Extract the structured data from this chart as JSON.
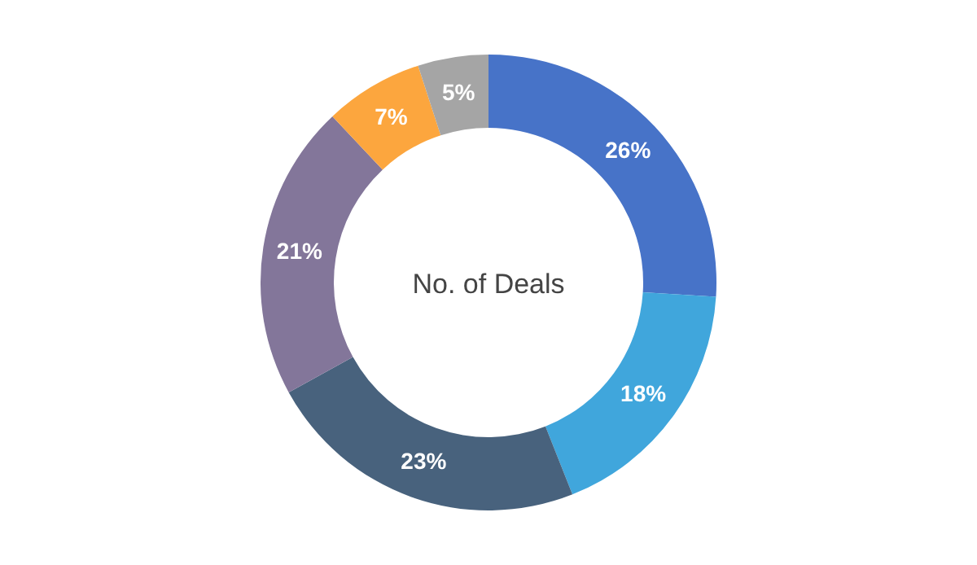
{
  "chart_data": {
    "type": "donut",
    "title": "No. of Deals",
    "categories": [
      null,
      null,
      null,
      null,
      null,
      null
    ],
    "values": [
      26,
      18,
      23,
      21,
      7,
      5
    ],
    "colors": [
      "#4773c8",
      "#40a6dc",
      "#48627d",
      "#83769a",
      "#fca63e",
      "#a5a5a5"
    ],
    "value_labels": [
      "26%",
      "18%",
      "23%",
      "21%",
      "7%",
      "5%"
    ]
  }
}
